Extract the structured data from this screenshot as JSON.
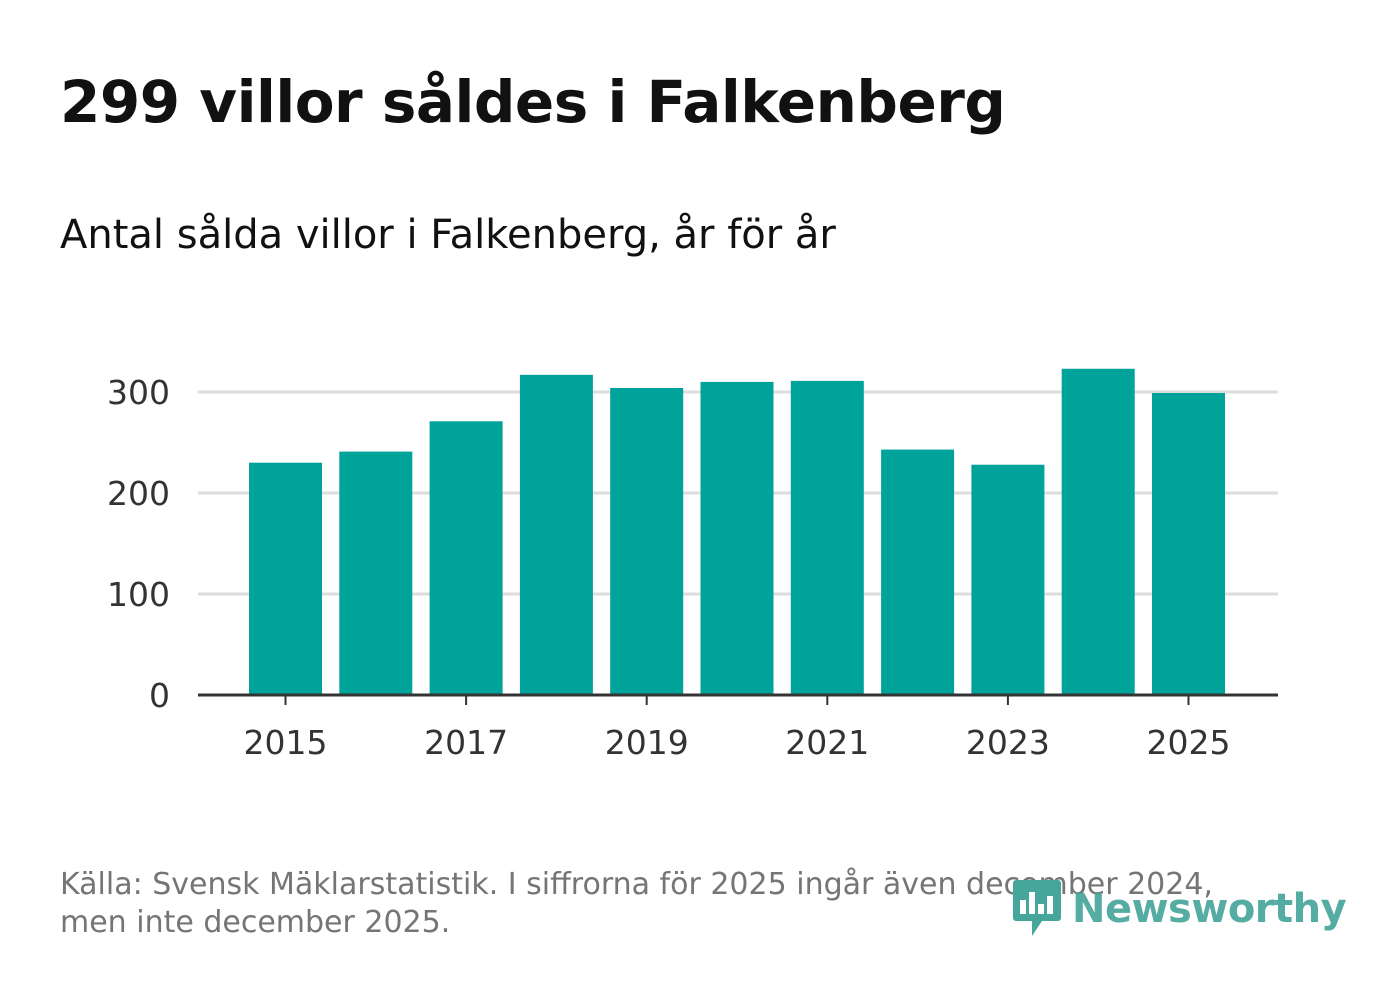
{
  "title": "299 villor såldes i Falkenberg",
  "subtitle": "Antal sålda villor i Falkenberg, år för år",
  "source": "Källa: Svensk Mäklarstatistik. I siffrorna för 2025 ingår även december 2024, men inte december 2025.",
  "logo": {
    "text": "Newsworthy",
    "icon": "newsworthy-logo-icon"
  },
  "colors": {
    "bar": "#00a39a",
    "grid": "#dddddd",
    "axis": "#333333",
    "logo": "#47a69b"
  },
  "chart_data": {
    "type": "bar",
    "title": "Antal sålda villor i Falkenberg, år för år",
    "xlabel": "",
    "ylabel": "",
    "categories": [
      2015,
      2016,
      2017,
      2018,
      2019,
      2020,
      2021,
      2022,
      2023,
      2024,
      2025
    ],
    "values": [
      230,
      241,
      271,
      317,
      304,
      310,
      311,
      243,
      228,
      323,
      299
    ],
    "ylim": [
      0,
      330
    ],
    "y_ticks": [
      0,
      100,
      200,
      300
    ],
    "x_tick_labels": [
      "2015",
      "2017",
      "2019",
      "2021",
      "2023",
      "2025"
    ],
    "grid": true
  }
}
